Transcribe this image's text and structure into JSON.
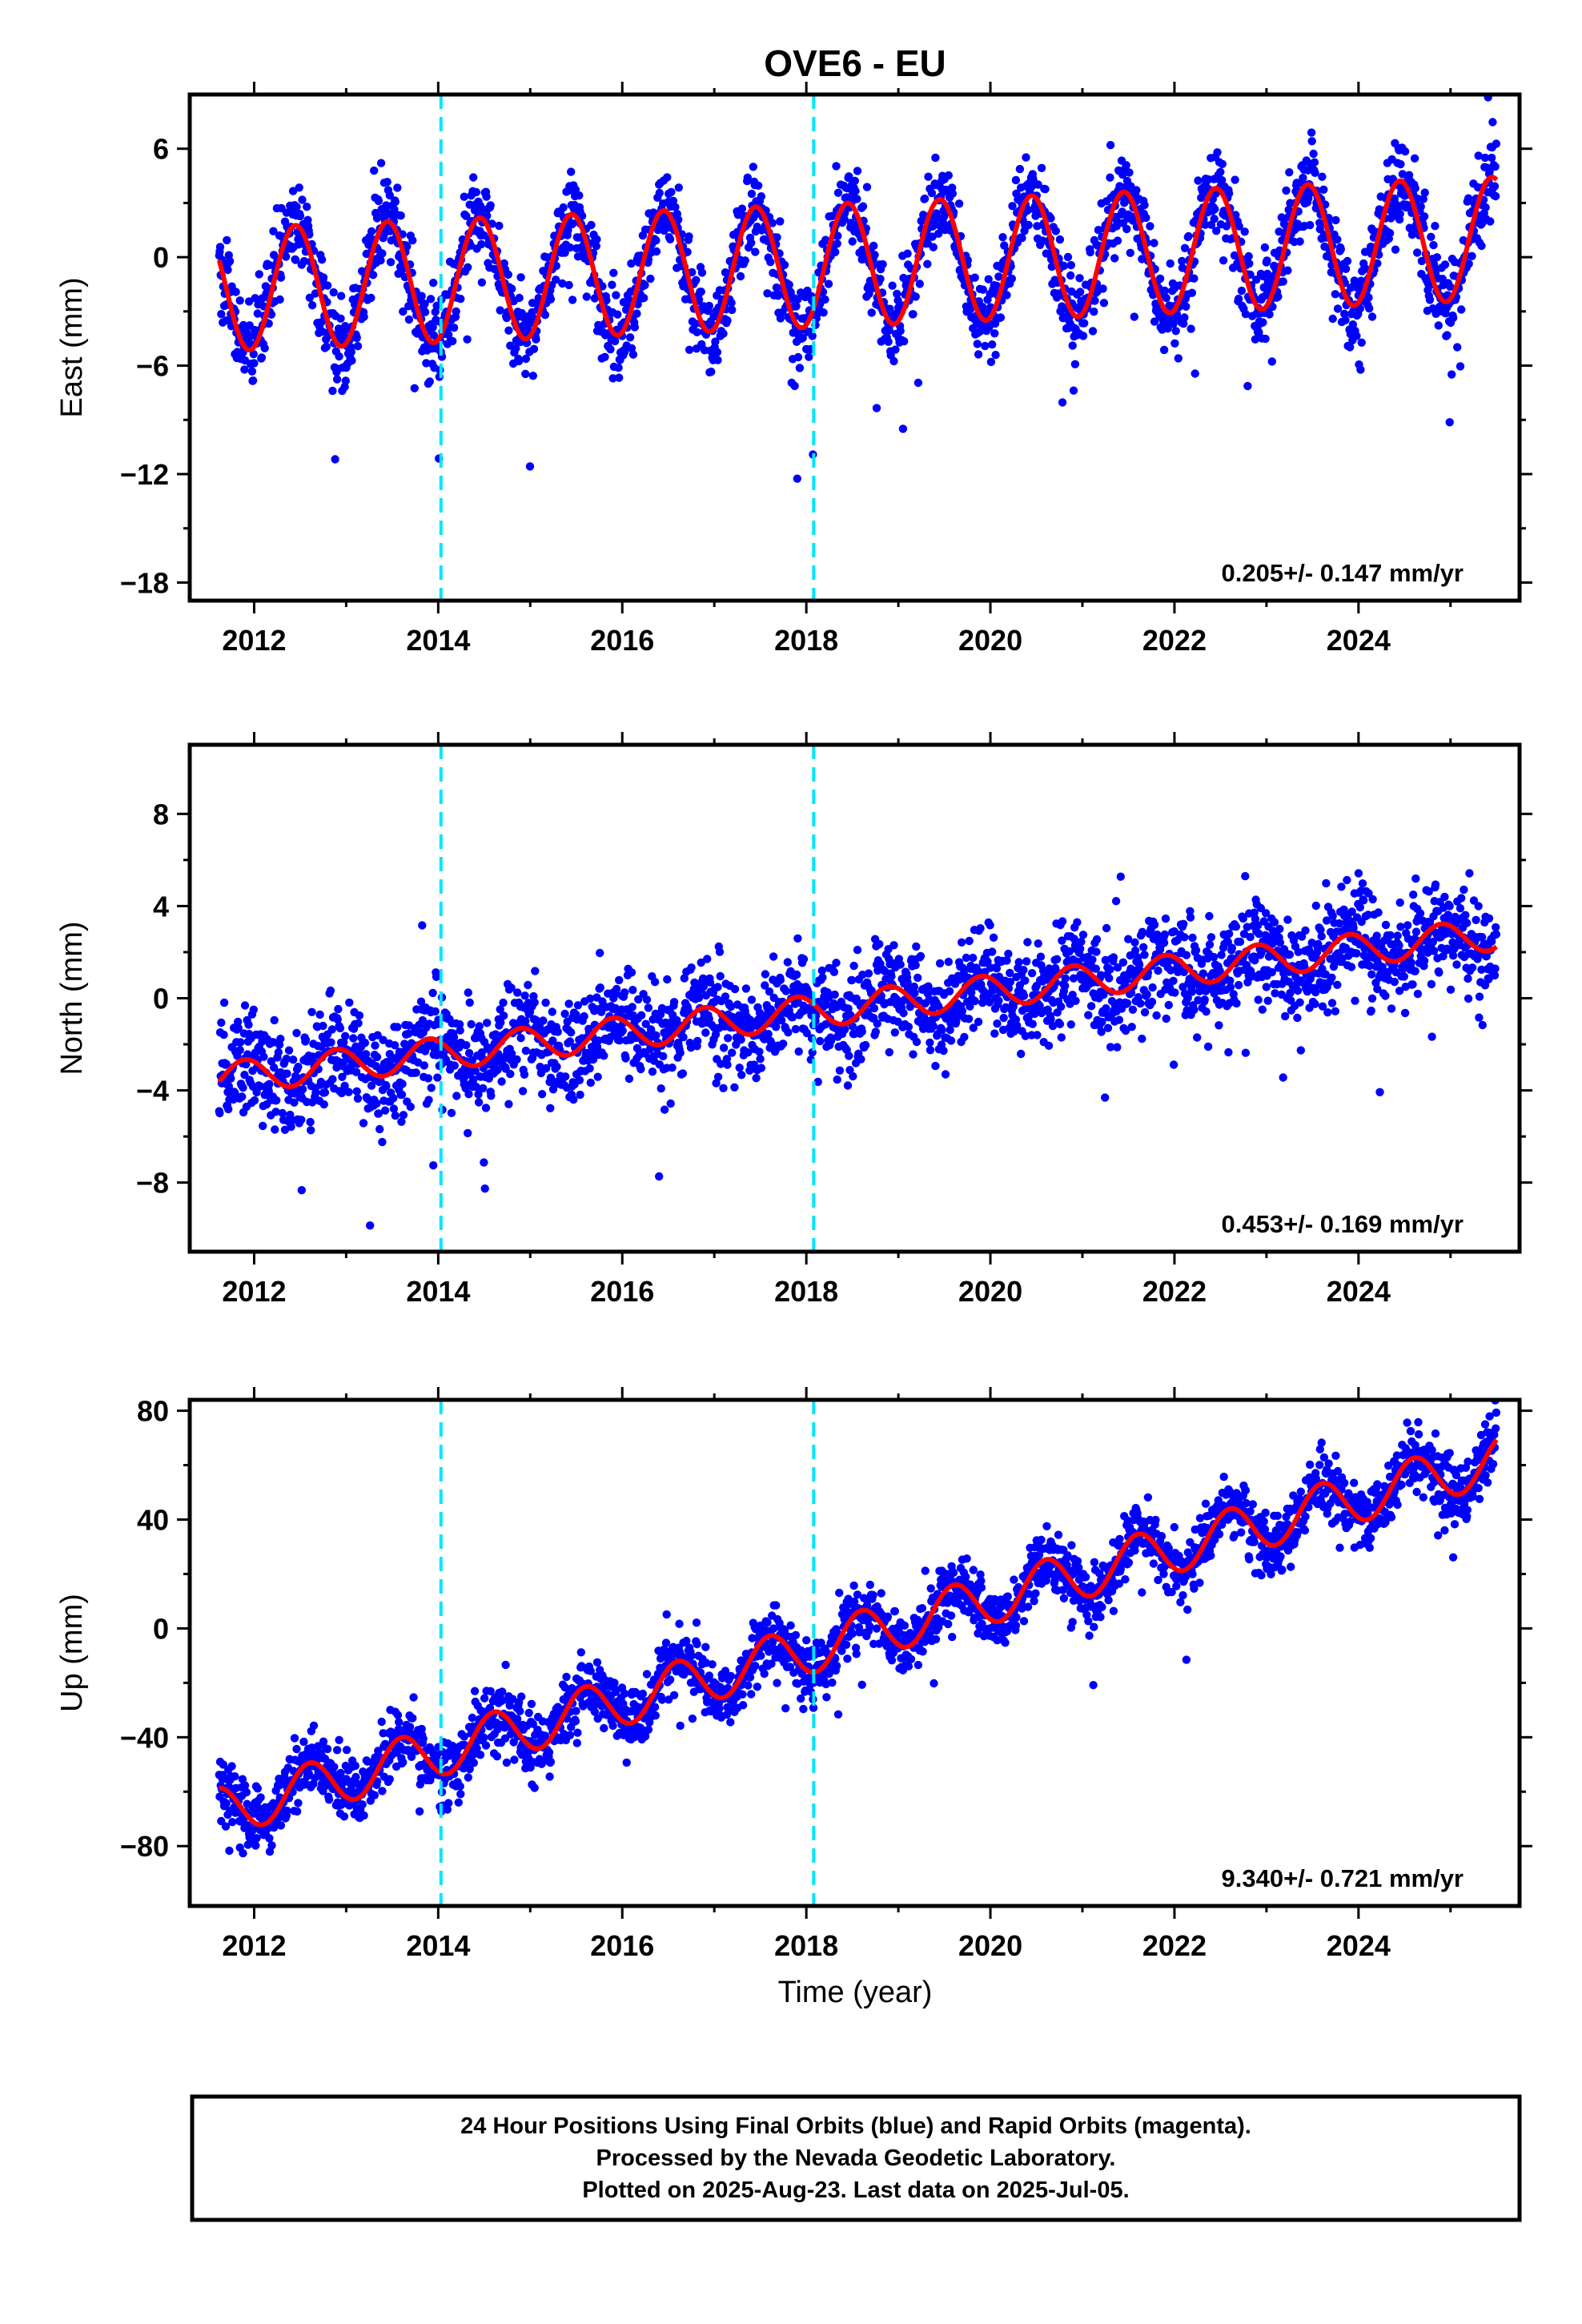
{
  "title": "OVE6 - EU",
  "colors": {
    "final_orbits": "#0000ff",
    "rapid_orbits": "#ff00ff",
    "model_fit": "#ff0000",
    "event_lines": "#00e5ff",
    "frame": "#000000"
  },
  "chart_data": [
    {
      "type": "scatter",
      "component": "east",
      "ylabel": "East (mm)",
      "ylim": [
        -19,
        9
      ],
      "yticks": [
        6,
        0,
        -6,
        -12,
        -18
      ],
      "xlim": [
        2011.3,
        2025.75
      ],
      "xticks": [
        2012,
        2014,
        2016,
        2018,
        2020,
        2022,
        2024
      ],
      "event_lines": [
        2014.03,
        2018.08
      ],
      "rate_label": "0.205+/- 0.147 mm/yr",
      "model": {
        "trend_mm_per_yr": 0.205,
        "annual_amplitude_mm": 3.4,
        "annual_peak_year_fraction": 0.45,
        "offset_mm_at_2018": -0.5
      },
      "grid": false,
      "legend": "none"
    },
    {
      "type": "scatter",
      "component": "north",
      "ylabel": "North (mm)",
      "ylim": [
        -11,
        11
      ],
      "yticks": [
        8,
        4,
        0,
        -4,
        -8
      ],
      "xlim": [
        2011.3,
        2025.75
      ],
      "xticks": [
        2012,
        2014,
        2016,
        2018,
        2020,
        2022,
        2024
      ],
      "event_lines": [
        2014.03,
        2018.08
      ],
      "rate_label": "0.453+/- 0.169 mm/yr",
      "model": {
        "trend_mm_per_yr": 0.453,
        "annual_amplitude_mm": 0.7,
        "annual_peak_year_fraction": 0.9,
        "offset_mm_at_2018": -0.6
      },
      "grid": false,
      "legend": "none"
    },
    {
      "type": "scatter",
      "component": "up",
      "ylabel": "Up (mm)",
      "ylim": [
        -102,
        84
      ],
      "yticks": [
        80,
        40,
        0,
        -40,
        -80
      ],
      "xlim": [
        2011.3,
        2025.75
      ],
      "xticks": [
        2012,
        2014,
        2016,
        2018,
        2020,
        2022,
        2024
      ],
      "xlabel": "Time (year)",
      "event_lines": [
        2014.03,
        2018.08
      ],
      "rate_label": "9.340+/- 0.721 mm/yr",
      "model": {
        "trend_mm_per_yr": 9.34,
        "annual_amplitude_mm": 9.0,
        "annual_peak_year_fraction": 0.6,
        "offset_mm_at_2018": -8.0
      },
      "grid": false,
      "legend": "none"
    }
  ],
  "footer": {
    "line1": "24 Hour Positions Using Final Orbits (blue) and Rapid Orbits (magenta).",
    "line2": "Processed by the Nevada Geodetic Laboratory.",
    "line3": "Plotted on 2025-Aug-23. Last data on 2025-Jul-05."
  }
}
